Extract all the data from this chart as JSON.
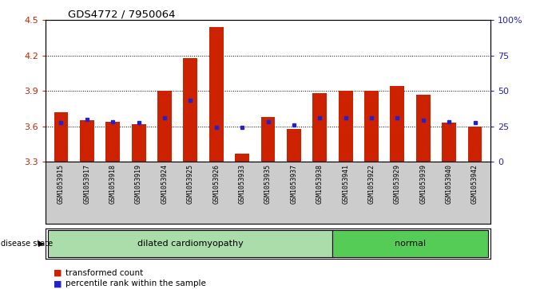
{
  "title": "GDS4772 / 7950064",
  "samples": [
    "GSM1053915",
    "GSM1053917",
    "GSM1053918",
    "GSM1053919",
    "GSM1053924",
    "GSM1053925",
    "GSM1053926",
    "GSM1053933",
    "GSM1053935",
    "GSM1053937",
    "GSM1053938",
    "GSM1053941",
    "GSM1053922",
    "GSM1053929",
    "GSM1053939",
    "GSM1053940",
    "GSM1053942"
  ],
  "red_values": [
    3.72,
    3.65,
    3.64,
    3.62,
    3.9,
    4.18,
    4.44,
    3.37,
    3.68,
    3.58,
    3.88,
    3.9,
    3.9,
    3.94,
    3.87,
    3.63,
    3.6
  ],
  "blue_values": [
    3.63,
    3.66,
    3.64,
    3.63,
    3.67,
    3.82,
    3.59,
    3.59,
    3.64,
    3.61,
    3.67,
    3.67,
    3.67,
    3.67,
    3.65,
    3.64,
    3.63
  ],
  "disease_groups": [
    {
      "label": "dilated cardiomyopathy",
      "start": 0,
      "end": 11,
      "color": "#aaddaa"
    },
    {
      "label": "normal",
      "start": 11,
      "end": 17,
      "color": "#55cc55"
    }
  ],
  "ylim_left": [
    3.3,
    4.5
  ],
  "bar_color": "#cc2200",
  "dot_color": "#2222cc",
  "bg_color": "#cccccc",
  "bar_bottom": 3.3,
  "left_ticks": [
    3.3,
    3.6,
    3.9,
    4.2,
    4.5
  ],
  "right_ticks": [
    0,
    25,
    50,
    75,
    100
  ],
  "right_tick_labels": [
    "0",
    "25",
    "50",
    "75",
    "100%"
  ],
  "grid_lines": [
    3.6,
    3.9,
    4.2
  ]
}
